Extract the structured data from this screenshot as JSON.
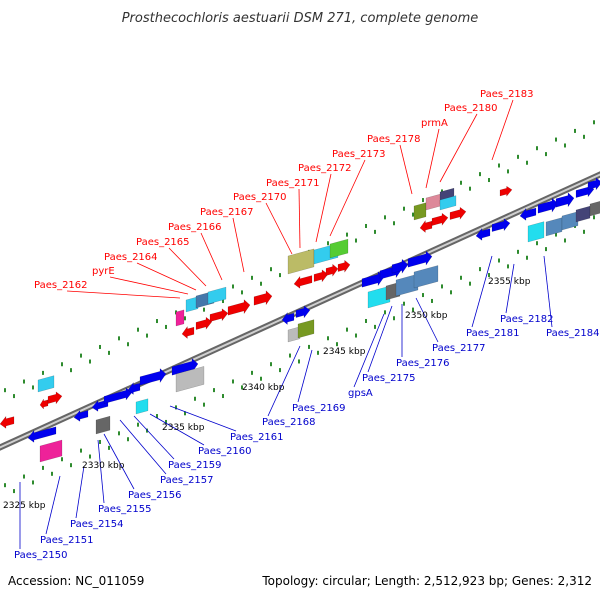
{
  "title": "Prosthecochloris aestuarii DSM 271, complete genome",
  "footer": {
    "accession": "Accession: NC_011059",
    "summary": "Topology: circular; Length: 2,512,923 bp; Genes: 2,312"
  },
  "colors": {
    "forward_label": "#ff0000",
    "reverse_label": "#0000cc",
    "tick": "#2e8b2e",
    "backbone": "#8c8c8c"
  },
  "scale": [
    {
      "text": "2325 kbp"
    },
    {
      "text": "2330 kbp"
    },
    {
      "text": "2335 kbp"
    },
    {
      "text": "2340 kbp"
    },
    {
      "text": "2345 kbp"
    },
    {
      "text": "2350 kbp"
    },
    {
      "text": "2355 kbp"
    }
  ],
  "forward_genes": [
    {
      "text": "Paes_2162"
    },
    {
      "text": "pyrE"
    },
    {
      "text": "Paes_2164"
    },
    {
      "text": "Paes_2165"
    },
    {
      "text": "Paes_2166"
    },
    {
      "text": "Paes_2167"
    },
    {
      "text": "Paes_2170"
    },
    {
      "text": "Paes_2171"
    },
    {
      "text": "Paes_2172"
    },
    {
      "text": "Paes_2173"
    },
    {
      "text": "Paes_2178"
    },
    {
      "text": "prmA"
    },
    {
      "text": "Paes_2180"
    },
    {
      "text": "Paes_2183"
    }
  ],
  "reverse_genes": [
    {
      "text": "Paes_2150"
    },
    {
      "text": "Paes_2151"
    },
    {
      "text": "Paes_2154"
    },
    {
      "text": "Paes_2155"
    },
    {
      "text": "Paes_2156"
    },
    {
      "text": "Paes_2157"
    },
    {
      "text": "Paes_2159"
    },
    {
      "text": "Paes_2160"
    },
    {
      "text": "Paes_2161"
    },
    {
      "text": "Paes_2168"
    },
    {
      "text": "Paes_2169"
    },
    {
      "text": "gpsA"
    },
    {
      "text": "Paes_2175"
    },
    {
      "text": "Paes_2176"
    },
    {
      "text": "Paes_2177"
    },
    {
      "text": "Paes_2181"
    },
    {
      "text": "Paes_2182"
    },
    {
      "text": "Paes_2184"
    }
  ]
}
